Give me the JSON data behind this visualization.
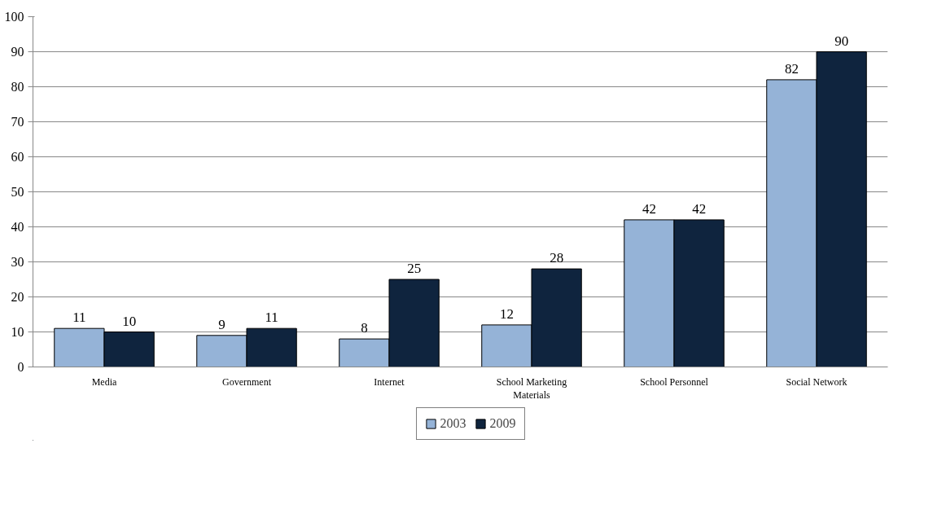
{
  "chart_data": {
    "type": "bar",
    "categories": [
      "Media",
      "Government",
      "Internet",
      "School Marketing Materials",
      "School Personnel",
      "Social Network"
    ],
    "series": [
      {
        "name": "2003",
        "color": "#95b3d7",
        "values": [
          11,
          9,
          8,
          12,
          42,
          82
        ]
      },
      {
        "name": "2009",
        "color": "#0f243e",
        "values": [
          10,
          11,
          25,
          28,
          42,
          90
        ]
      }
    ],
    "ylim": [
      0,
      100
    ],
    "yticks": [
      0,
      10,
      20,
      30,
      40,
      50,
      60,
      70,
      80,
      90,
      100
    ],
    "grid": "y",
    "legend": "bottom",
    "data_labels": true
  }
}
